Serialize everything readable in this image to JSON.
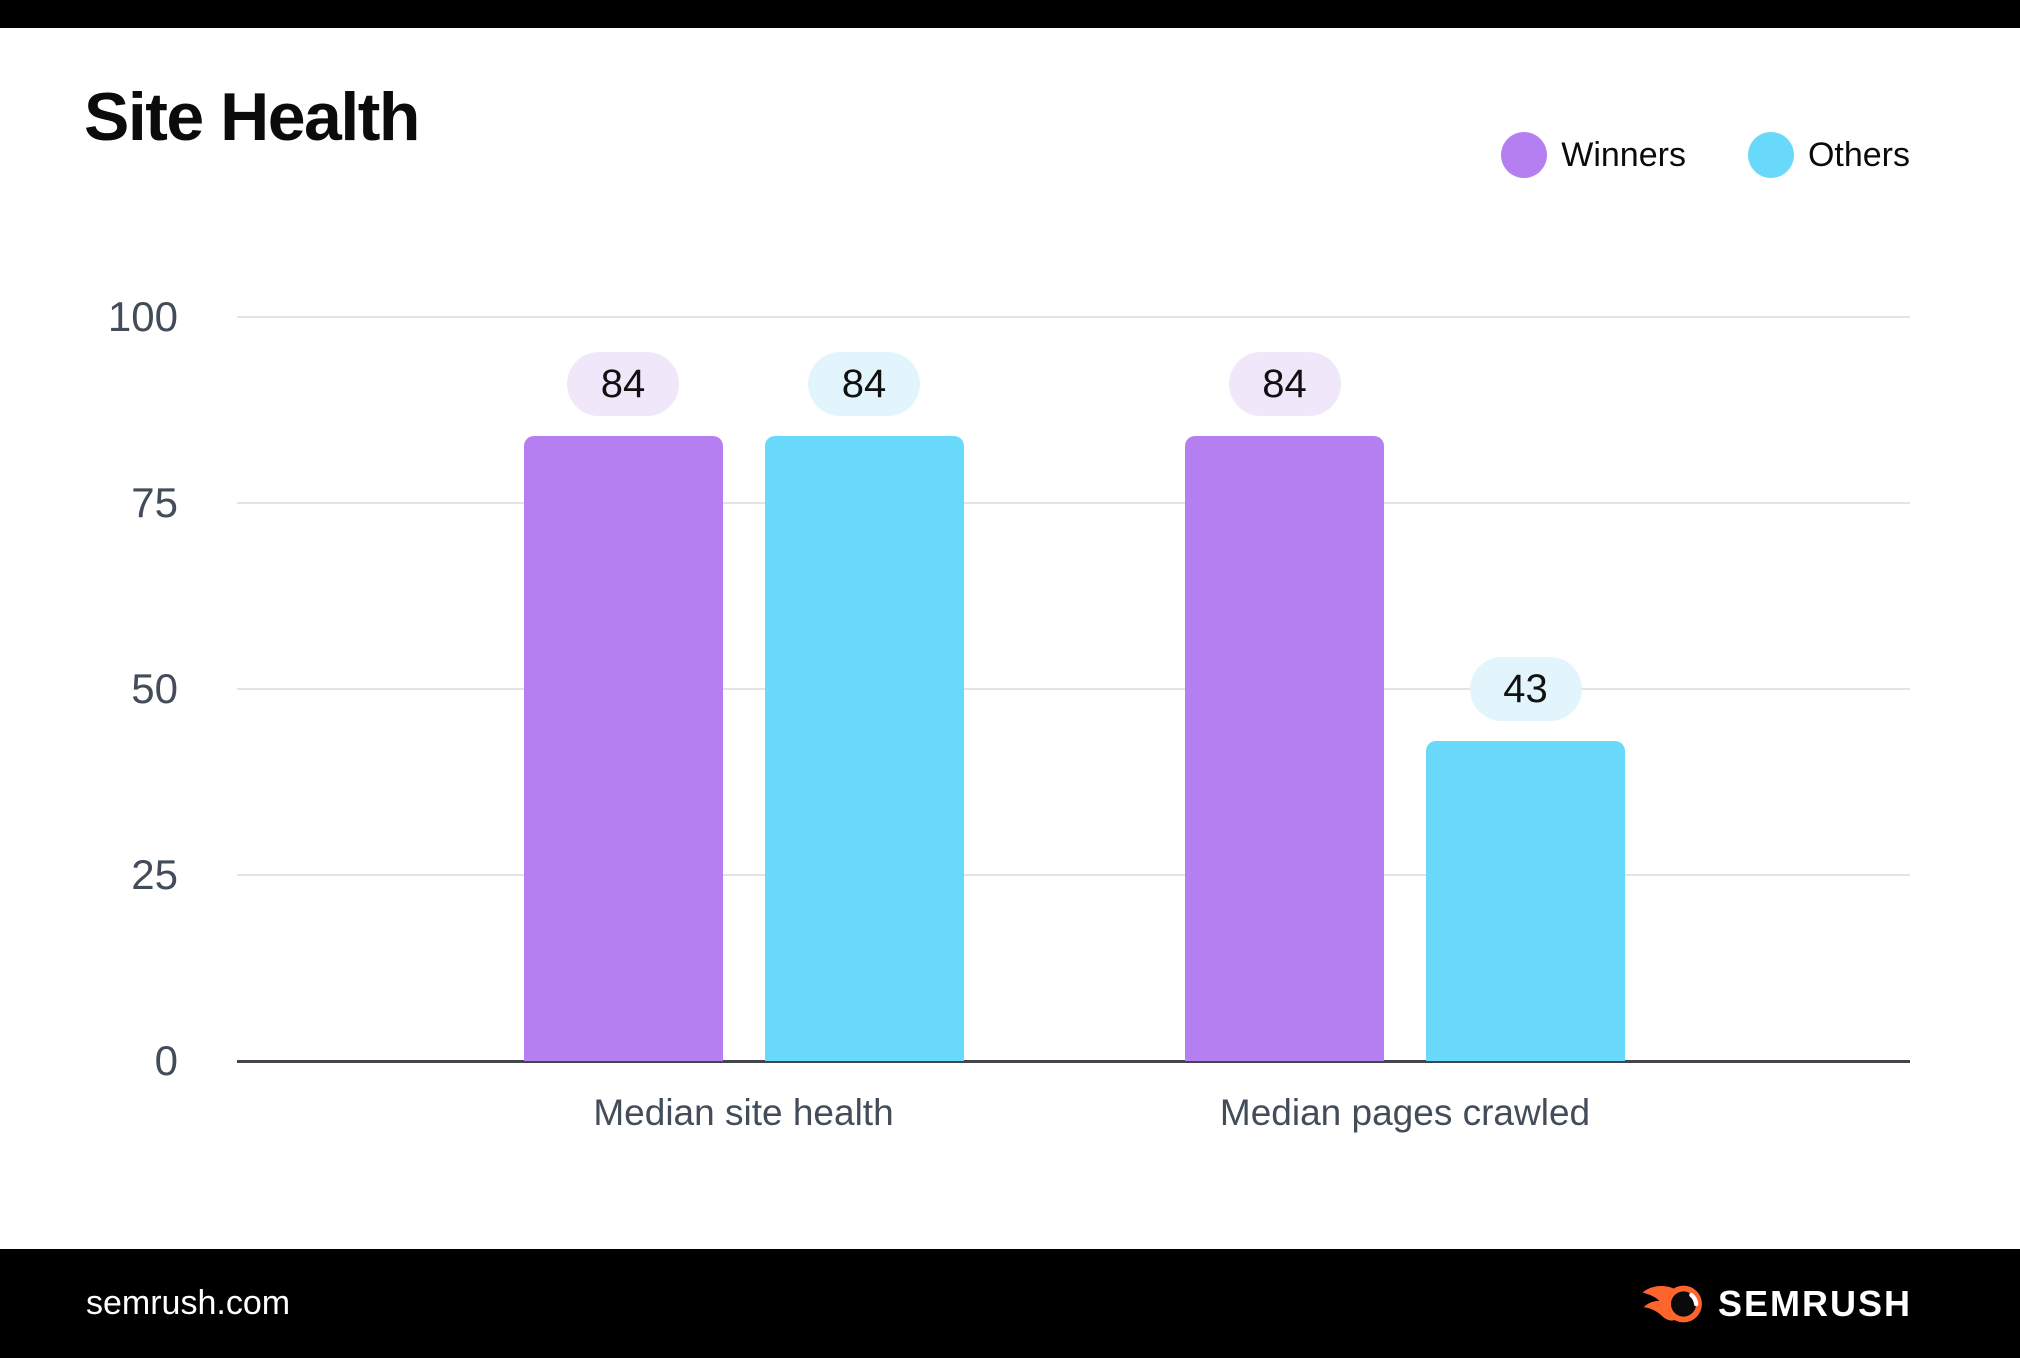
{
  "page": {
    "title": "Site Health"
  },
  "legend": {
    "items": [
      {
        "label": "Winners",
        "color": "#b57ff2"
      },
      {
        "label": "Others",
        "color": "#69d9fb"
      }
    ]
  },
  "chart_data": {
    "type": "bar",
    "title": "Site Health",
    "categories": [
      "Median site health",
      "Median pages crawled"
    ],
    "series": [
      {
        "name": "Winners",
        "color": "#b57ff2",
        "value_label_bg": "#f0e7fb",
        "values": [
          84,
          84
        ]
      },
      {
        "name": "Others",
        "color": "#69d9fb",
        "value_label_bg": "#e3f5fc",
        "values": [
          84,
          43
        ]
      }
    ],
    "xlabel": "",
    "ylabel": "",
    "ylim": [
      0,
      100
    ],
    "yticks": [
      0,
      25,
      50,
      75,
      100
    ],
    "grid": true,
    "legend_position": "top-right",
    "value_labels": true
  },
  "colors": {
    "grid": "#e4e4e7",
    "axis_line": "#43454c",
    "tick_text": "#434c59",
    "title_text": "#0b0b0b",
    "footer_bg": "#000000",
    "brand_orange": "#ff642d"
  },
  "footer": {
    "site_text": "semrush.com",
    "brand_text": "SEMRUSH"
  }
}
